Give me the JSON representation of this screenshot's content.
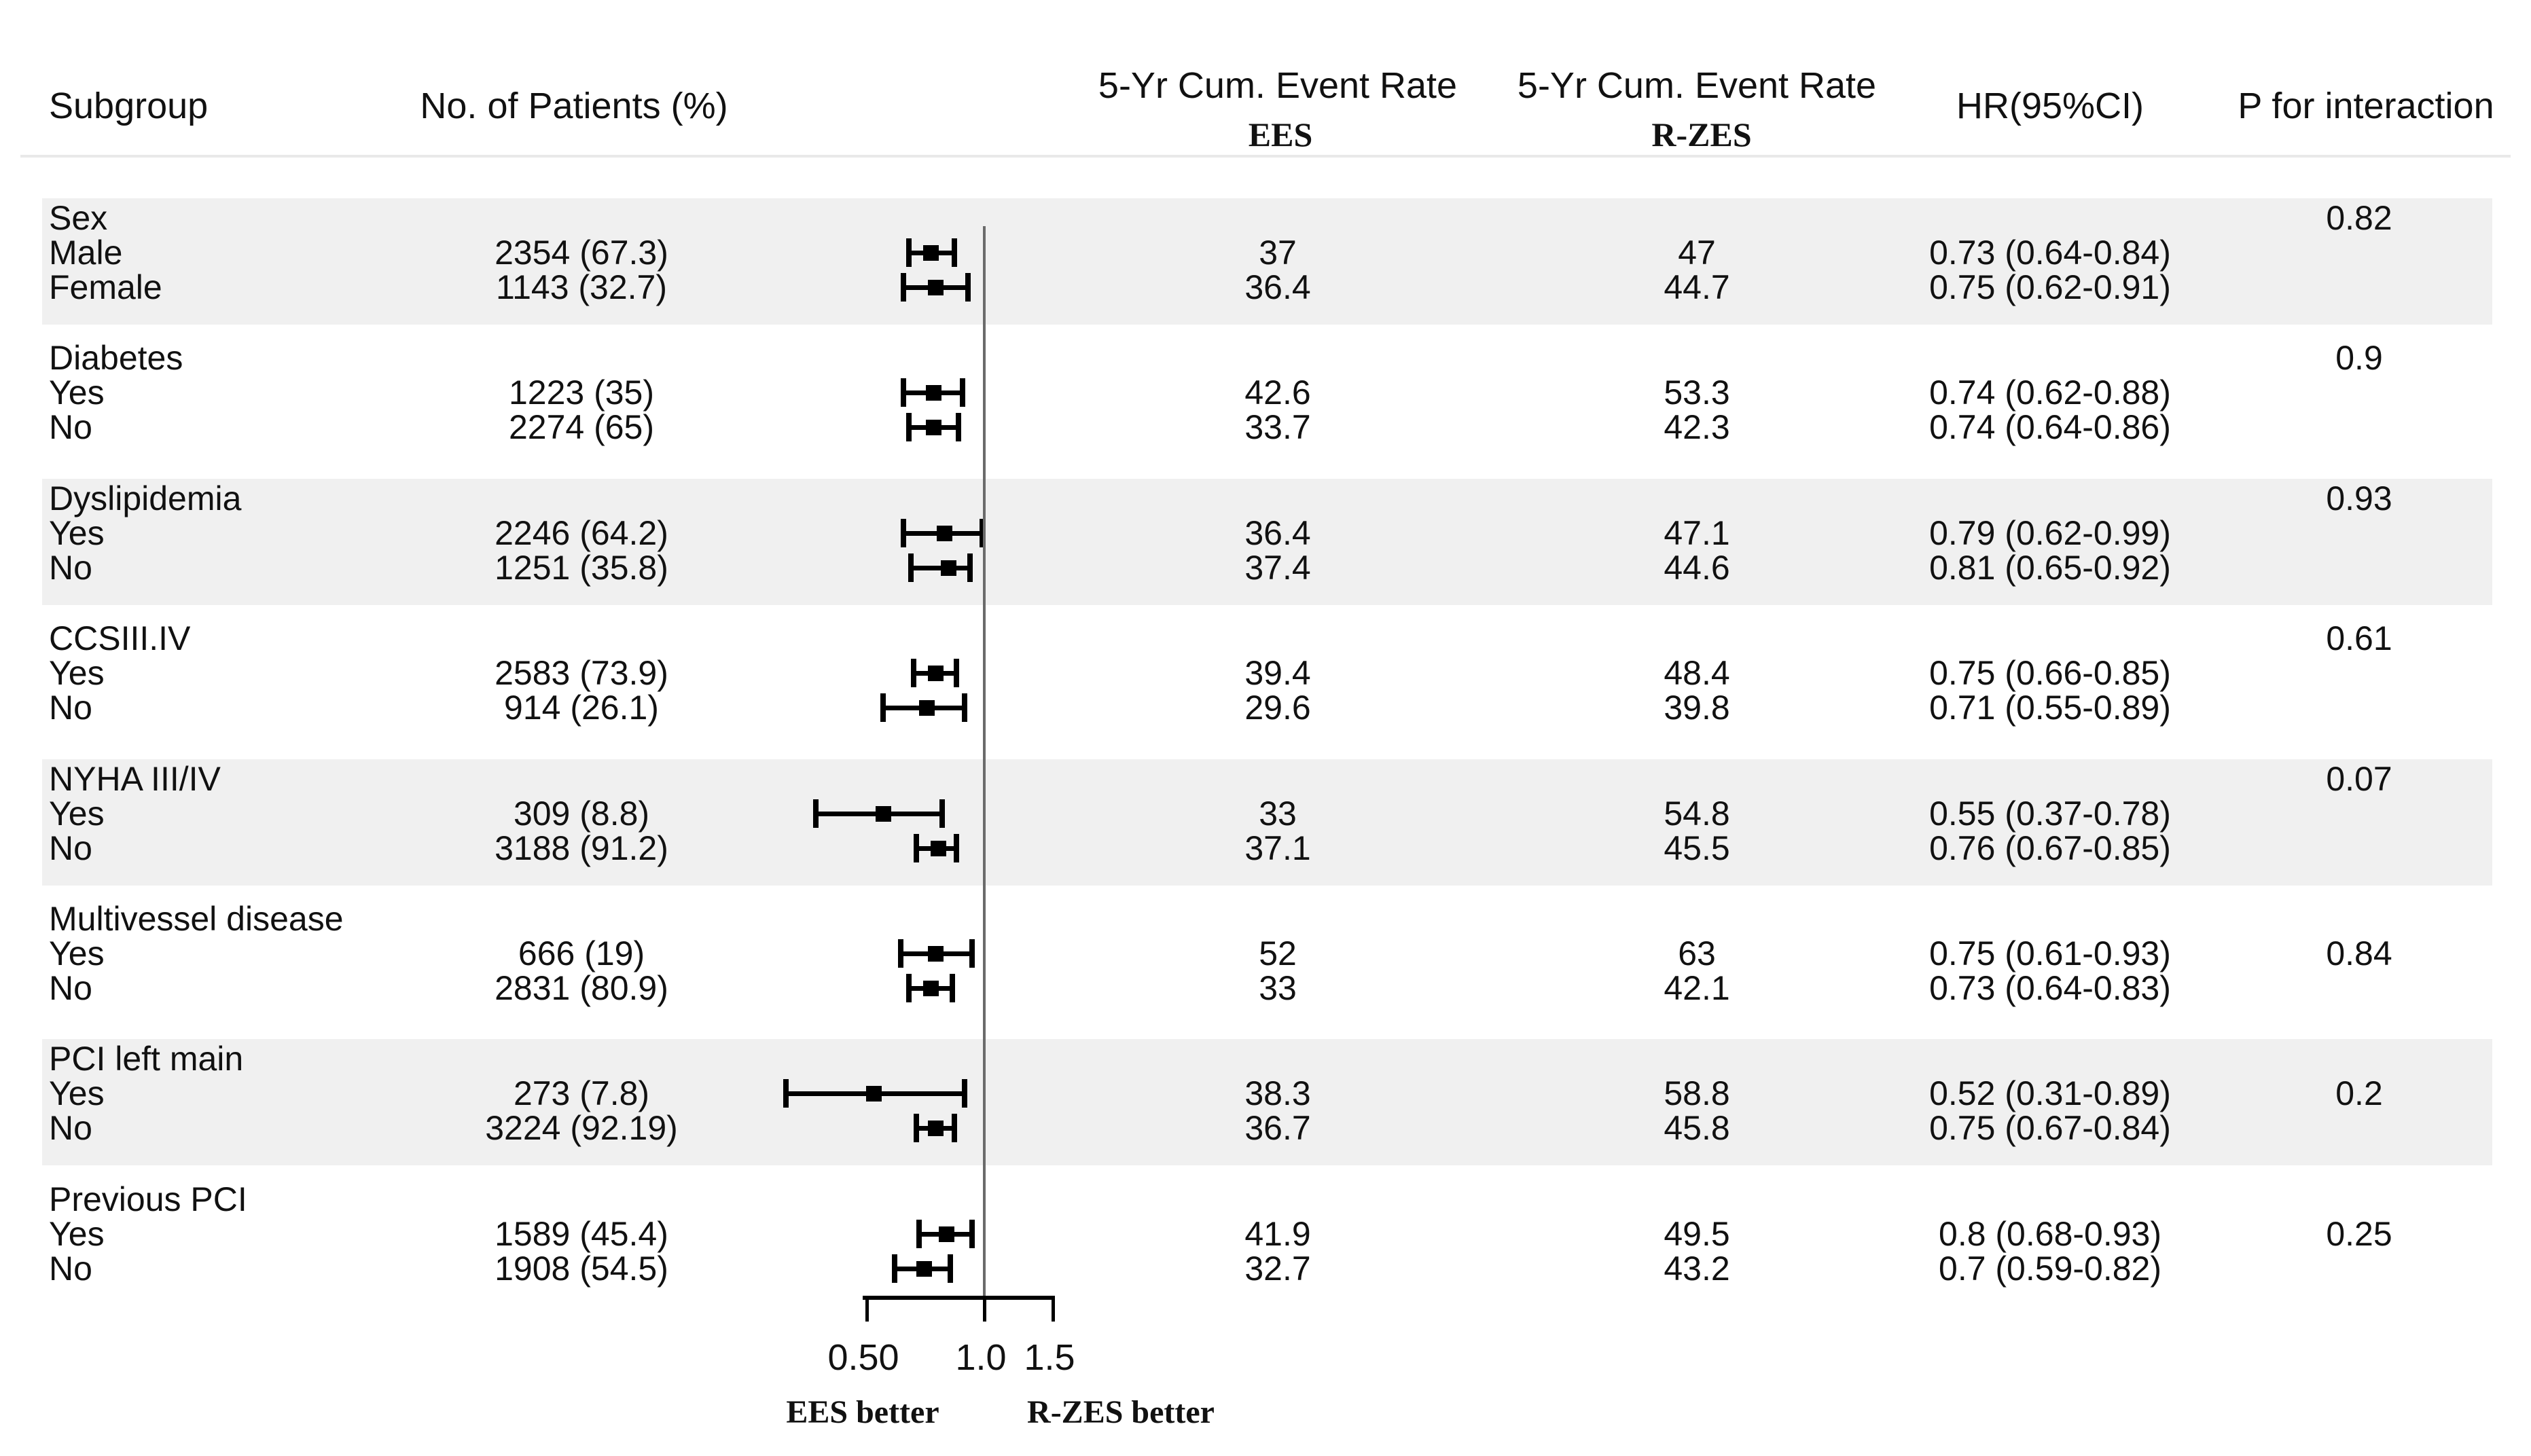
{
  "header": {
    "subgroup": "Subgroup",
    "patients": "No. of Patients (%)",
    "event_rate": "5-Yr Cum. Event Rate",
    "ees": "EES",
    "rzes": "R-ZES",
    "hr": "HR(95%CI)",
    "p_interaction": "P for interaction"
  },
  "colors": {
    "band": "#f0f0f0",
    "ref_line": "#6b6b6b",
    "underline": "#e9e9e9",
    "marker": "#000000",
    "text": "#111111"
  },
  "chart_data": {
    "type": "forest",
    "x_scale": "log",
    "axis": {
      "ticks": [
        0.5,
        1.0,
        1.5
      ],
      "tick_labels": [
        "0.50",
        "1.0",
        "1.5"
      ],
      "reference_value": 1.0,
      "left_label": "EES better",
      "right_label": "R-ZES better"
    },
    "groups": [
      {
        "name": "Sex",
        "p_interaction": "0.82",
        "p_on_header": true,
        "rows": [
          {
            "label": "Male",
            "n": "2354 (67.3)",
            "ees": "37",
            "rzes": "47",
            "hr": 0.73,
            "lo": 0.64,
            "hi": 0.84,
            "hr_text": "0.73 (0.64-0.84)"
          },
          {
            "label": "Female",
            "n": "1143 (32.7)",
            "ees": "36.4",
            "rzes": "44.7",
            "hr": 0.75,
            "lo": 0.62,
            "hi": 0.91,
            "hr_text": "0.75 (0.62-0.91)"
          }
        ]
      },
      {
        "name": "Diabetes",
        "p_interaction": "0.9",
        "p_on_header": true,
        "rows": [
          {
            "label": "Yes",
            "n": "1223 (35)",
            "ees": "42.6",
            "rzes": "53.3",
            "hr": 0.74,
            "lo": 0.62,
            "hi": 0.88,
            "hr_text": "0.74 (0.62-0.88)"
          },
          {
            "label": "No",
            "n": "2274 (65)",
            "ees": "33.7",
            "rzes": "42.3",
            "hr": 0.74,
            "lo": 0.64,
            "hi": 0.86,
            "hr_text": "0.74 (0.64-0.86)"
          }
        ]
      },
      {
        "name": "Dyslipidemia",
        "p_interaction": "0.93",
        "p_on_header": true,
        "rows": [
          {
            "label": "Yes",
            "n": "2246 (64.2)",
            "ees": "36.4",
            "rzes": "47.1",
            "hr": 0.79,
            "lo": 0.62,
            "hi": 0.99,
            "hr_text": "0.79 (0.62-0.99)"
          },
          {
            "label": "No",
            "n": "1251 (35.8)",
            "ees": "37.4",
            "rzes": "44.6",
            "hr": 0.81,
            "lo": 0.65,
            "hi": 0.92,
            "hr_text": "0.81 (0.65-0.92)"
          }
        ]
      },
      {
        "name": "CCSIII.IV",
        "p_interaction": "0.61",
        "p_on_header": true,
        "rows": [
          {
            "label": "Yes",
            "n": "2583 (73.9)",
            "ees": "39.4",
            "rzes": "48.4",
            "hr": 0.75,
            "lo": 0.66,
            "hi": 0.85,
            "hr_text": "0.75 (0.66-0.85)"
          },
          {
            "label": "No",
            "n": "914 (26.1)",
            "ees": "29.6",
            "rzes": "39.8",
            "hr": 0.71,
            "lo": 0.55,
            "hi": 0.89,
            "hr_text": "0.71 (0.55-0.89)"
          }
        ]
      },
      {
        "name": "NYHA III/IV",
        "p_interaction": "0.07",
        "p_on_header": true,
        "rows": [
          {
            "label": "Yes",
            "n": "309 (8.8)",
            "ees": "33",
            "rzes": "54.8",
            "hr": 0.55,
            "lo": 0.37,
            "hi": 0.78,
            "hr_text": "0.55 (0.37-0.78)"
          },
          {
            "label": "No",
            "n": "3188 (91.2)",
            "ees": "37.1",
            "rzes": "45.5",
            "hr": 0.76,
            "lo": 0.67,
            "hi": 0.85,
            "hr_text": "0.76 (0.67-0.85)"
          }
        ]
      },
      {
        "name": "Multivessel disease",
        "p_interaction": "0.84",
        "p_on_header": false,
        "rows": [
          {
            "label": "Yes",
            "n": "666 (19)",
            "ees": "52",
            "rzes": "63",
            "hr": 0.75,
            "lo": 0.61,
            "hi": 0.93,
            "hr_text": "0.75 (0.61-0.93)"
          },
          {
            "label": "No",
            "n": "2831 (80.9)",
            "ees": "33",
            "rzes": "42.1",
            "hr": 0.73,
            "lo": 0.64,
            "hi": 0.83,
            "hr_text": "0.73 (0.64-0.83)"
          }
        ]
      },
      {
        "name": "PCI left main",
        "p_interaction": "0.2",
        "p_on_header": false,
        "rows": [
          {
            "label": "Yes",
            "n": "273 (7.8)",
            "ees": "38.3",
            "rzes": "58.8",
            "hr": 0.52,
            "lo": 0.31,
            "hi": 0.89,
            "hr_text": "0.52 (0.31-0.89)"
          },
          {
            "label": "No",
            "n": "3224 (92.19)",
            "ees": "36.7",
            "rzes": "45.8",
            "hr": 0.75,
            "lo": 0.67,
            "hi": 0.84,
            "hr_text": "0.75 (0.67-0.84)"
          }
        ]
      },
      {
        "name": "Previous PCI",
        "p_interaction": "0.25",
        "p_on_header": false,
        "rows": [
          {
            "label": "Yes",
            "n": "1589 (45.4)",
            "ees": "41.9",
            "rzes": "49.5",
            "hr": 0.8,
            "lo": 0.68,
            "hi": 0.93,
            "hr_text": "0.8 (0.68-0.93)"
          },
          {
            "label": "No",
            "n": "1908 (54.5)",
            "ees": "32.7",
            "rzes": "43.2",
            "hr": 0.7,
            "lo": 0.59,
            "hi": 0.82,
            "hr_text": "0.7 (0.59-0.82)"
          }
        ]
      }
    ]
  }
}
